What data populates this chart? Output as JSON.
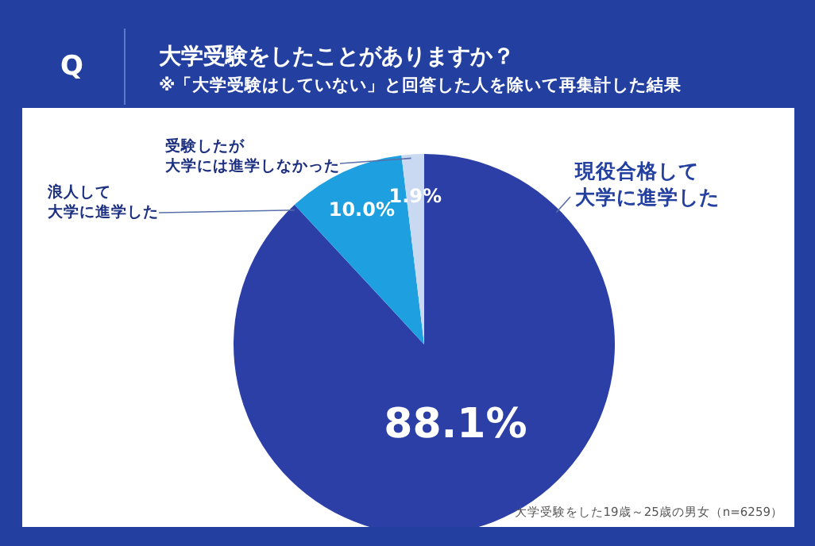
{
  "chart_data": {
    "type": "pie",
    "title": "大学受験をしたことがありますか？",
    "subtitle": "※「大学受験はしていない」と回答した人を除いて再集計した結果",
    "categories": [
      "現役合格して大学に進学した",
      "浪人して大学に進学した",
      "受験したが大学には進学しなかった"
    ],
    "values": [
      88.1,
      10.0,
      1.9
    ],
    "colors": [
      "#2b3fa6",
      "#1d9fe0",
      "#c9d9f2"
    ],
    "value_labels": [
      "88.1%",
      "10.0%",
      "1.9%"
    ],
    "annotations": [
      "Q",
      "大学受験をした19歳～25歳の男女（n=6259）"
    ],
    "legend": false
  }
}
